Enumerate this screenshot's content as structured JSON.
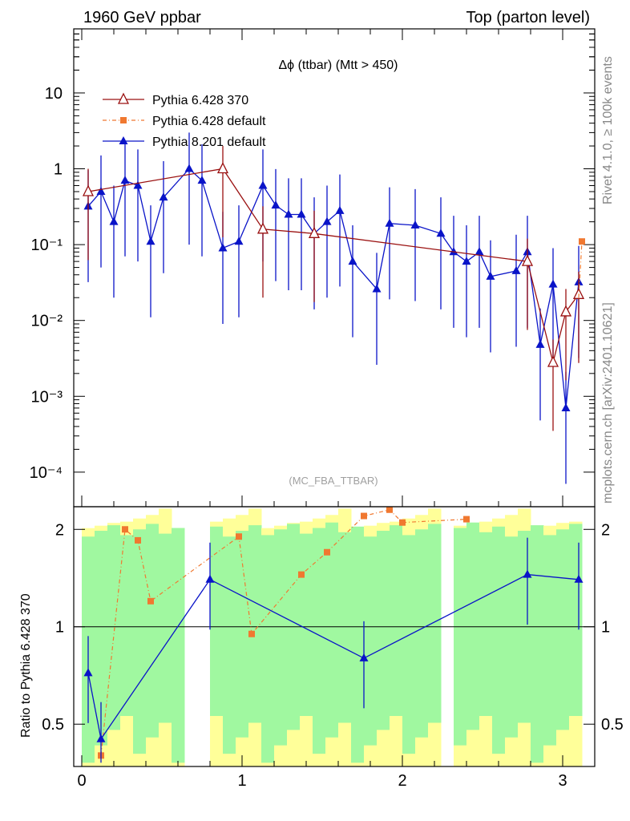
{
  "header": {
    "left": "1960 GeV ppbar",
    "right": "Top (parton level)"
  },
  "side_labels": {
    "rivet": "Rivet 4.1.0, ≥ 100k events",
    "mcplots": "mcplots.cern.ch [arXiv:2401.10621]"
  },
  "colors": {
    "pythia6_370": "#9a1010",
    "pythia6_default": "#f07830",
    "pythia8_default": "#0a14c8",
    "band_inner": "#a0f8a0",
    "band_outer": "#ffff99"
  },
  "chart_data": [
    {
      "type": "line",
      "scale": "log",
      "title": "Δϕ (ttbar) (Mtt > 450)",
      "watermark": "(MC_FBA_TTBAR)",
      "xlim": [
        -0.05,
        3.2
      ],
      "ylim": [
        3.5e-05,
        70
      ],
      "ytick_labels": [
        "10",
        "1",
        "10⁻¹",
        "10⁻²",
        "10⁻³",
        "10⁻⁴"
      ],
      "legend": [
        "Pythia 6.428 370",
        "Pythia 6.428 default",
        "Pythia 8.201 default"
      ],
      "series": [
        {
          "name": "Pythia 6.428 370",
          "x": [
            0.04,
            0.88,
            1.13,
            1.45,
            2.78,
            2.94,
            3.02,
            3.1
          ],
          "y": [
            0.5,
            1.0,
            0.16,
            0.14,
            0.06,
            0.0028,
            0.013,
            0.022
          ]
        },
        {
          "name": "Pythia 6.428 default",
          "x": [
            3.12
          ],
          "y": [
            0.11
          ]
        },
        {
          "name": "Pythia 8.201 default",
          "x": [
            0.04,
            0.12,
            0.2,
            0.27,
            0.35,
            0.43,
            0.51,
            0.67,
            0.75,
            0.88,
            0.98,
            1.13,
            1.21,
            1.29,
            1.37,
            1.45,
            1.53,
            1.61,
            1.69,
            1.84,
            1.92,
            2.08,
            2.24,
            2.32,
            2.4,
            2.48,
            2.55,
            2.71,
            2.78,
            2.86,
            2.94,
            3.02,
            3.1
          ],
          "y": [
            0.32,
            0.5,
            0.2,
            0.7,
            0.6,
            0.11,
            0.42,
            1.0,
            0.7,
            0.09,
            0.11,
            0.6,
            0.33,
            0.25,
            0.25,
            0.14,
            0.2,
            0.28,
            0.06,
            0.026,
            0.19,
            0.18,
            0.14,
            0.08,
            0.06,
            0.08,
            0.038,
            0.045,
            0.08,
            0.0048,
            0.03,
            0.0007,
            0.032
          ]
        }
      ]
    },
    {
      "type": "line",
      "title": "",
      "ylabel": "Ratio to Pythia 6.428 370",
      "xlim": [
        -0.05,
        3.2
      ],
      "ylim": [
        0.37,
        2.35
      ],
      "ytick_labels": [
        "2",
        "1",
        "0.5"
      ],
      "xtick_labels": [
        "0",
        "1",
        "2",
        "3"
      ],
      "series": [
        {
          "name": "Pythia 6.428 default",
          "x": [
            0.12,
            0.27,
            0.35,
            0.43,
            0.98,
            1.06,
            1.37,
            1.53,
            1.76,
            1.92,
            2.0,
            2.4
          ],
          "y": [
            0.4,
            2.0,
            1.85,
            1.2,
            1.9,
            0.95,
            1.45,
            1.7,
            2.2,
            2.3,
            2.1,
            2.15
          ]
        },
        {
          "name": "Pythia 8.201 default",
          "x": [
            0.04,
            0.12,
            0.8,
            1.76,
            2.78,
            3.1
          ],
          "y": [
            0.72,
            0.45,
            1.4,
            0.8,
            1.45,
            1.4
          ]
        }
      ]
    }
  ]
}
